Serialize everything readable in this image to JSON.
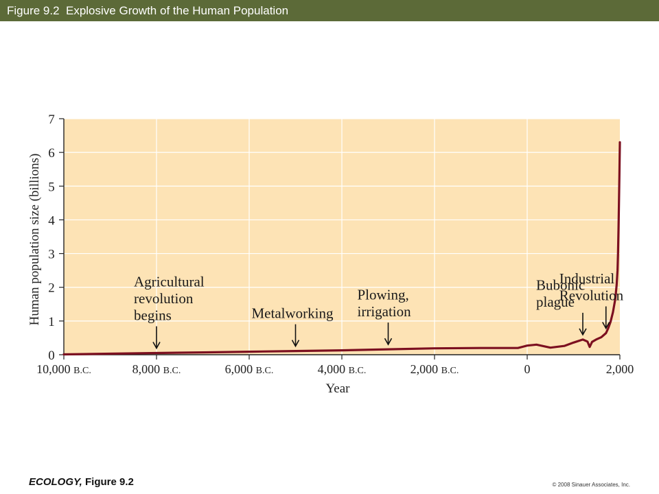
{
  "header": {
    "title": "Figure 9.2  Explosive Growth of the Human Population"
  },
  "footer": {
    "book": "ECOLOGY,",
    "figure": "Figure 9.2",
    "copyright": "© 2008 Sinauer Associates, Inc."
  },
  "colors": {
    "title_bar": "#5c6a38",
    "plot_background": "#fde3b5",
    "gridline": "#ffffff",
    "curve": "#7c1020"
  },
  "chart_data": {
    "type": "line",
    "title": "",
    "xlabel": "Year",
    "ylabel": "Human population size (billions)",
    "xlim": [
      -10000,
      2000
    ],
    "ylim": [
      0,
      7
    ],
    "grid": true,
    "xticks": [
      {
        "value": -10000,
        "label": "10,000 B.C."
      },
      {
        "value": -8000,
        "label": "8,000 B.C."
      },
      {
        "value": -6000,
        "label": "6,000 B.C."
      },
      {
        "value": -4000,
        "label": "4,000 B.C."
      },
      {
        "value": -2000,
        "label": "2,000 B.C."
      },
      {
        "value": 0,
        "label": "0"
      },
      {
        "value": 2000,
        "label": "2,000"
      }
    ],
    "yticks": [
      {
        "value": 0,
        "label": "0"
      },
      {
        "value": 1,
        "label": "1"
      },
      {
        "value": 2,
        "label": "2"
      },
      {
        "value": 3,
        "label": "3"
      },
      {
        "value": 4,
        "label": "4"
      },
      {
        "value": 5,
        "label": "5"
      },
      {
        "value": 6,
        "label": "6"
      },
      {
        "value": 7,
        "label": "7"
      }
    ],
    "series": [
      {
        "x": [
          -10000,
          -9000,
          -8000,
          -7000,
          -6000,
          -5000,
          -4000,
          -3000,
          -2000,
          -1000,
          -200,
          0,
          200,
          500,
          800,
          1000,
          1200,
          1300,
          1348,
          1400,
          1500,
          1600,
          1700,
          1750,
          1800,
          1850,
          1900,
          1930,
          1950,
          1960,
          1970,
          1980,
          1990,
          2000
        ],
        "y": [
          0.01,
          0.03,
          0.05,
          0.07,
          0.09,
          0.11,
          0.13,
          0.16,
          0.19,
          0.2,
          0.2,
          0.27,
          0.3,
          0.21,
          0.26,
          0.36,
          0.45,
          0.39,
          0.23,
          0.38,
          0.46,
          0.52,
          0.64,
          0.79,
          0.98,
          1.26,
          1.65,
          2.07,
          2.5,
          3.0,
          3.7,
          4.4,
          5.3,
          6.3
        ]
      }
    ],
    "annotations": [
      {
        "lines": [
          "Agricultural",
          "revolution",
          "begins"
        ],
        "x": -8000
      },
      {
        "lines": [
          "Metalworking"
        ],
        "x": -5000
      },
      {
        "lines": [
          "Plowing,",
          "irrigation"
        ],
        "x": -3000
      },
      {
        "lines": [
          "Bubonic",
          "plague"
        ],
        "x": 1200
      },
      {
        "lines": [
          "Industrial",
          "Revolution"
        ],
        "x": 1700
      }
    ]
  }
}
